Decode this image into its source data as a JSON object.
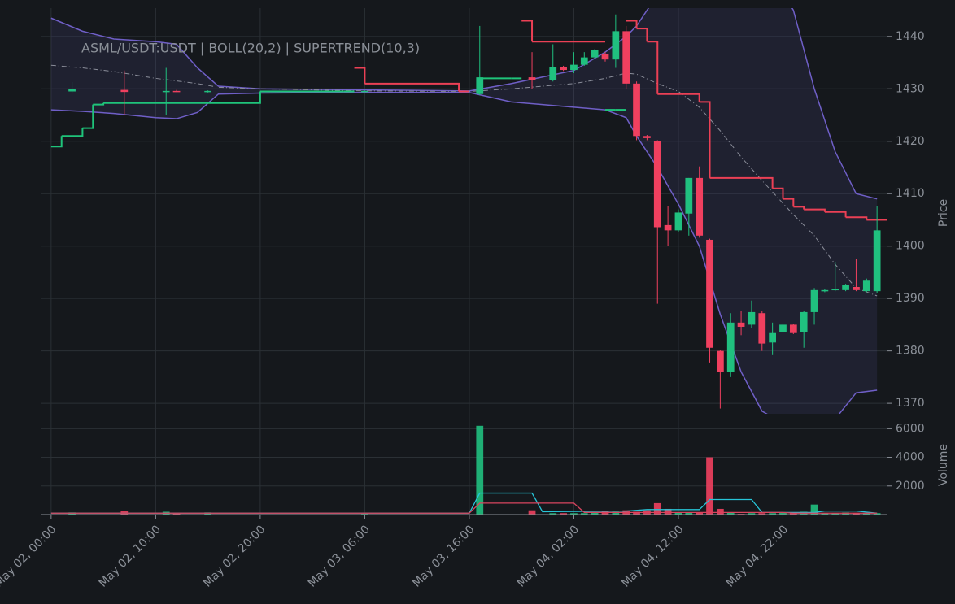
{
  "chart_data": {
    "type": "candlestick",
    "title": "ASML/USDT:USDT | BOLL(20,2) | SUPERTREND(10,3)",
    "y_label": "Price",
    "volume_label": "Volume",
    "xlim": [
      "May 01, 23:00",
      "May 05, 08:00"
    ],
    "xticks": [
      "May 02, 00:00",
      "May 02, 10:00",
      "May 02, 20:00",
      "May 03, 06:00",
      "May 03, 16:00",
      "May 04, 02:00",
      "May 04, 12:00",
      "May 04, 22:00"
    ],
    "ylim": [
      1368,
      1445.4
    ],
    "yticks": [
      1370,
      1380,
      1390,
      1400,
      1410,
      1420,
      1430,
      1440
    ],
    "volume_ylim": [
      0,
      6700
    ],
    "volume_yticks": [
      2000,
      4000,
      6000
    ],
    "grid": true,
    "up_color": "#20c07f",
    "down_color": "#f0405f",
    "candles": {
      "x": [
        "May 02, 02:00",
        "May 02, 07:00",
        "May 02, 11:00",
        "May 02, 12:00",
        "May 02, 15:00",
        "May 03, 06:00",
        "May 03, 17:00",
        "May 03, 22:00",
        "May 04, 00:00",
        "May 04, 01:00",
        "May 04, 02:00",
        "May 04, 03:00",
        "May 04, 04:00",
        "May 04, 05:00",
        "May 04, 06:00",
        "May 04, 07:00",
        "May 04, 08:00",
        "May 04, 09:00",
        "May 04, 10:00",
        "May 04, 11:00",
        "May 04, 12:00",
        "May 04, 13:00",
        "May 04, 14:00",
        "May 04, 15:00",
        "May 04, 16:00",
        "May 04, 17:00",
        "May 04, 18:00",
        "May 04, 19:00",
        "May 04, 20:00",
        "May 04, 21:00",
        "May 04, 22:00",
        "May 04, 23:00",
        "May 05, 00:00",
        "May 05, 01:00",
        "May 05, 02:00",
        "May 05, 03:00",
        "May 05, 04:00",
        "May 05, 05:00",
        "May 05, 06:00",
        "May 05, 07:00"
      ],
      "open": [
        1429.5,
        1429.8,
        1429.4,
        1429.6,
        1429.5,
        1429.5,
        1429,
        1432.2,
        1431.6,
        1434.2,
        1433.6,
        1434.6,
        1436,
        1436.6,
        1435.6,
        1441,
        1431,
        1421,
        1420,
        1404,
        1403,
        1406.2,
        1413,
        1401.2,
        1380,
        1376,
        1385.4,
        1385,
        1387.2,
        1381.6,
        1383.6,
        1385,
        1383.6,
        1387.4,
        1391.4,
        1391.6,
        1391.6,
        1392.2,
        1391.4,
        1391.4
      ],
      "high": [
        1431.3,
        1433.5,
        1434,
        1429.8,
        1429.7,
        1429.7,
        1442,
        1437,
        1438.5,
        1434.4,
        1437,
        1437,
        1437.6,
        1437,
        1444.2,
        1442,
        1431.4,
        1421.2,
        1420.2,
        1407.6,
        1407,
        1413,
        1415.2,
        1401.4,
        1380.2,
        1387.2,
        1387.6,
        1389.6,
        1387.6,
        1385.4,
        1385.4,
        1385.2,
        1387.6,
        1392,
        1391.8,
        1397,
        1392.8,
        1397.6,
        1393.8,
        1407.6
      ],
      "low": [
        1429.3,
        1425,
        1425,
        1429.4,
        1429.3,
        1429.4,
        1428.8,
        1430,
        1431.4,
        1433.4,
        1433,
        1434.4,
        1435.8,
        1435.2,
        1434,
        1430,
        1420.2,
        1420.2,
        1389,
        1400,
        1402.6,
        1402,
        1401.6,
        1377.8,
        1369,
        1375,
        1383,
        1384.4,
        1380,
        1379.2,
        1383.4,
        1383.2,
        1380.6,
        1385,
        1391.2,
        1391.4,
        1391.4,
        1391.4,
        1391.2,
        1391
      ],
      "close": [
        1430,
        1429.4,
        1429.6,
        1429.5,
        1429.6,
        1429.6,
        1432.2,
        1431.6,
        1434.2,
        1433.6,
        1434.6,
        1436,
        1437.4,
        1435.6,
        1441,
        1431,
        1421,
        1420.6,
        1403.6,
        1403,
        1406.4,
        1413,
        1402,
        1380.6,
        1376,
        1385.4,
        1384.6,
        1387.4,
        1381.4,
        1383.4,
        1385,
        1383.4,
        1387.4,
        1391.6,
        1391.6,
        1391.8,
        1392.6,
        1391.6,
        1393.4,
        1403
      ],
      "volume": [
        150,
        250,
        200,
        100,
        150,
        50,
        6200,
        300,
        100,
        100,
        100,
        100,
        150,
        250,
        200,
        300,
        200,
        300,
        800,
        400,
        150,
        150,
        150,
        4000,
        400,
        150,
        50,
        100,
        100,
        100,
        150,
        100,
        200,
        700,
        100,
        100,
        150,
        100,
        100,
        100
      ]
    },
    "bollinger": {
      "color": "#6f5fc7",
      "middle_color": "#8a8d99",
      "fill": "#6f5fc7",
      "x": [
        "May 02, 00:00",
        "May 02, 03:00",
        "May 02, 06:00",
        "May 02, 10:00",
        "May 02, 12:00",
        "May 02, 14:00",
        "May 02, 16:00",
        "May 02, 20:00",
        "May 03, 06:00",
        "May 03, 16:00",
        "May 03, 20:00",
        "May 04, 02:00",
        "May 04, 05:00",
        "May 04, 07:00",
        "May 04, 08:00",
        "May 04, 10:00",
        "May 04, 12:00",
        "May 04, 14:00",
        "May 04, 16:00",
        "May 04, 18:00",
        "May 04, 20:00",
        "May 04, 23:00",
        "May 05, 01:00",
        "May 05, 03:00",
        "May 05, 05:00",
        "May 05, 07:00"
      ],
      "upper": [
        1443.5,
        1441,
        1439.5,
        1439,
        1438.5,
        1434,
        1430.5,
        1430,
        1429.8,
        1429.6,
        1431,
        1433.5,
        1437,
        1440,
        1442,
        1448,
        1455,
        1460,
        1462,
        1460,
        1455,
        1445,
        1430,
        1418,
        1410,
        1409
      ],
      "middle": [
        1434.5,
        1434,
        1433.3,
        1432,
        1431.5,
        1431,
        1430.3,
        1430,
        1429.6,
        1429.5,
        1430,
        1431,
        1432,
        1433,
        1432.8,
        1431,
        1429.5,
        1426.5,
        1422,
        1417,
        1412.5,
        1406,
        1402,
        1396.5,
        1392,
        1390.5
      ],
      "lower": [
        1426,
        1425.7,
        1425.3,
        1424.5,
        1424.3,
        1425.5,
        1429,
        1429.2,
        1429.3,
        1429.3,
        1427.5,
        1426.5,
        1426,
        1424.5,
        1421,
        1415,
        1408,
        1400,
        1387,
        1376,
        1368.5,
        1365,
        1364,
        1367,
        1372,
        1372.5
      ]
    },
    "supertrend": [
      {
        "color": "#1fc47a",
        "x": [
          "May 02, 00:00",
          "May 02, 01:00",
          "May 02, 03:00",
          "May 02, 04:00",
          "May 02, 05:00",
          "May 02, 20:00",
          "May 03, 04:00",
          "May 03, 05:00",
          "May 03, 17:00",
          "May 03, 20:00",
          "May 03, 21:00",
          "May 04, 05:00",
          "May 04, 06:00"
        ],
        "values": [
          1419,
          1421,
          1422.5,
          1427,
          1427.3,
          1429.5,
          1429.5,
          null,
          1432,
          1432,
          null,
          1426,
          1426
        ]
      },
      {
        "color": "#eb4055",
        "x": [
          "May 03, 05:00",
          "May 03, 06:00",
          "May 03, 15:00",
          "May 03, 16:00",
          "May 03, 21:00",
          "May 03, 22:00",
          "May 04, 04:00",
          "May 04, 05:00",
          "May 04, 07:00",
          "May 04, 08:00",
          "May 04, 09:00",
          "May 04, 10:00",
          "May 04, 14:00",
          "May 04, 15:00",
          "May 04, 21:00",
          "May 04, 22:00",
          "May 04, 23:00",
          "May 05, 00:00",
          "May 05, 02:00",
          "May 05, 04:00",
          "May 05, 06:00",
          "May 05, 07:00"
        ],
        "values": [
          1434,
          1431,
          1429.5,
          null,
          1443,
          1439,
          1439,
          null,
          1443,
          1441.5,
          1439,
          1429,
          1427.5,
          1413,
          1411,
          1409,
          1407.5,
          1407,
          1406.5,
          1405.5,
          1405,
          1405
        ]
      }
    ],
    "volume_lines": [
      {
        "color": "#27c5d8",
        "x": [
          "May 02, 00:00",
          "May 03, 16:00",
          "May 03, 17:00",
          "May 03, 22:00",
          "May 03, 23:00",
          "May 04, 07:00",
          "May 04, 09:00",
          "May 04, 14:00",
          "May 04, 15:00",
          "May 04, 19:00",
          "May 04, 20:00",
          "May 05, 01:00",
          "May 05, 02:00",
          "May 05, 05:00",
          "May 05, 07:00"
        ],
        "values": [
          100,
          100,
          1500,
          1500,
          200,
          250,
          350,
          350,
          1050,
          1050,
          150,
          150,
          250,
          250,
          100
        ]
      },
      {
        "color": "#d9455f",
        "x": [
          "May 02, 00:00",
          "May 03, 16:00",
          "May 03, 17:00",
          "May 04, 02:00",
          "May 04, 03:00",
          "May 04, 22:00",
          "May 04, 23:00",
          "May 05, 07:00"
        ],
        "values": [
          100,
          100,
          800,
          800,
          150,
          150,
          100,
          100
        ]
      }
    ]
  }
}
